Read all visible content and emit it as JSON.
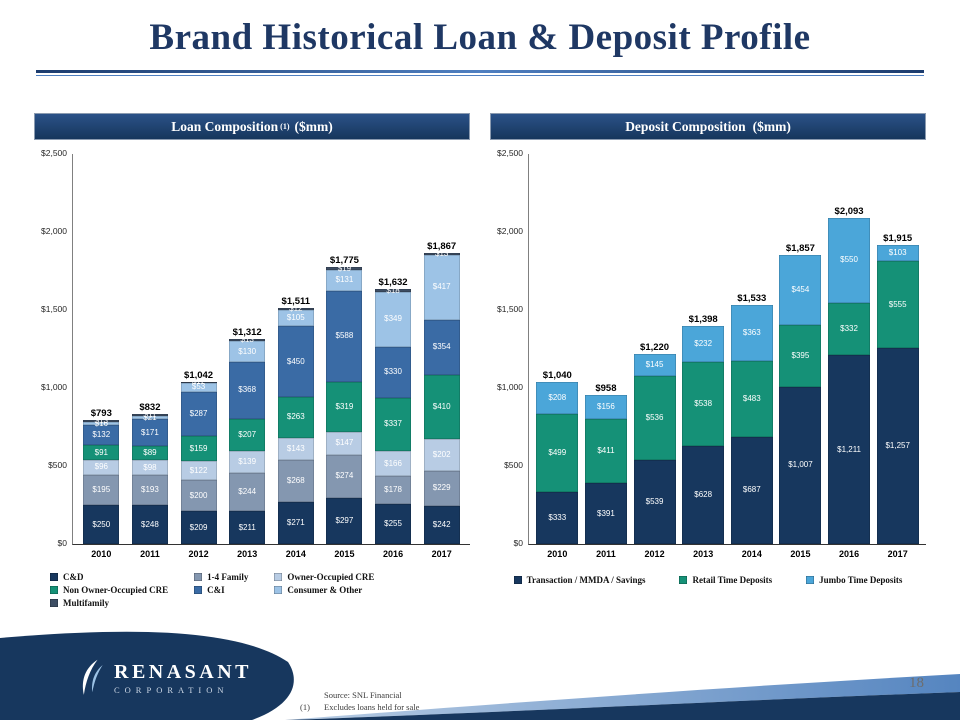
{
  "slide": {
    "title": "Brand Historical Loan & Deposit Profile",
    "page_number": "18",
    "footnotes": {
      "source": "Source: SNL Financial",
      "note_marker": "(1)",
      "note_text": "Excludes loans held for sale"
    },
    "logo": {
      "name": "RENASANT",
      "sub": "CORPORATION"
    }
  },
  "colors": {
    "navy": "#17375e",
    "accent_light_blue": "#8fb1d8",
    "header_navy": "#1f3864"
  },
  "chart_data": [
    {
      "type": "bar",
      "stacked": true,
      "title": "Loan Composition",
      "title_sup": "(1)",
      "title_suffix": "($mm)",
      "categories": [
        "2010",
        "2011",
        "2012",
        "2013",
        "2014",
        "2015",
        "2016",
        "2017"
      ],
      "series": [
        {
          "name": "C&D",
          "color": "#17375e",
          "values": [
            250,
            248,
            209,
            211,
            271,
            297,
            255,
            242
          ]
        },
        {
          "name": "1-4 Family",
          "color": "#8497b0",
          "values": [
            195,
            193,
            200,
            244,
            268,
            274,
            178,
            229
          ]
        },
        {
          "name": "Owner-Occupied CRE",
          "color": "#b8cce4",
          "values": [
            96,
            98,
            122,
            139,
            143,
            147,
            166,
            202
          ]
        },
        {
          "name": "Non Owner-Occupied CRE",
          "color": "#159177",
          "values": [
            91,
            89,
            159,
            207,
            263,
            319,
            337,
            410
          ]
        },
        {
          "name": "C&I",
          "color": "#3a6ba5",
          "values": [
            132,
            171,
            287,
            368,
            450,
            588,
            330,
            354
          ]
        },
        {
          "name": "Consumer & Other",
          "color": "#9dc3e6",
          "values": [
            16,
            21,
            53,
            130,
            105,
            131,
            349,
            417
          ]
        },
        {
          "name": "Multifamily",
          "color": "#3d4d63",
          "values": [
            13,
            11,
            12,
            13,
            12,
            19,
            18,
            13
          ]
        }
      ],
      "totals": [
        "$793",
        "$832",
        "$1,042",
        "$1,312",
        "$1,511",
        "$1,775",
        "$1,632",
        "$1,867"
      ],
      "ylabel_ticks": [
        "$0",
        "$500",
        "$1,000",
        "$1,500",
        "$2,000",
        "$2,500"
      ],
      "ylim": [
        0,
        2500
      ],
      "grid": false,
      "legend_position": "bottom-grid"
    },
    {
      "type": "bar",
      "stacked": true,
      "title": "Deposit Composition",
      "title_sup": "",
      "title_suffix": "($mm)",
      "categories": [
        "2010",
        "2011",
        "2012",
        "2013",
        "2014",
        "2015",
        "2016",
        "2017"
      ],
      "series": [
        {
          "name": "Transaction / MMDA / Savings",
          "color": "#17375e",
          "values": [
            333,
            391,
            539,
            628,
            687,
            1007,
            1211,
            1257
          ]
        },
        {
          "name": "Retail Time Deposits",
          "color": "#159177",
          "values": [
            499,
            411,
            536,
            538,
            483,
            395,
            332,
            555
          ]
        },
        {
          "name": "Jumbo Time Deposits",
          "color": "#4ba6d9",
          "values": [
            208,
            156,
            145,
            232,
            363,
            454,
            550,
            103
          ]
        }
      ],
      "totals": [
        "$1,040",
        "$958",
        "$1,220",
        "$1,398",
        "$1,533",
        "$1,857",
        "$2,093",
        "$1,915"
      ],
      "ylabel_ticks": [
        "$0",
        "$500",
        "$1,000",
        "$1,500",
        "$2,000",
        "$2,500"
      ],
      "ylim": [
        0,
        2500
      ],
      "grid": false,
      "legend_position": "bottom-row"
    }
  ]
}
